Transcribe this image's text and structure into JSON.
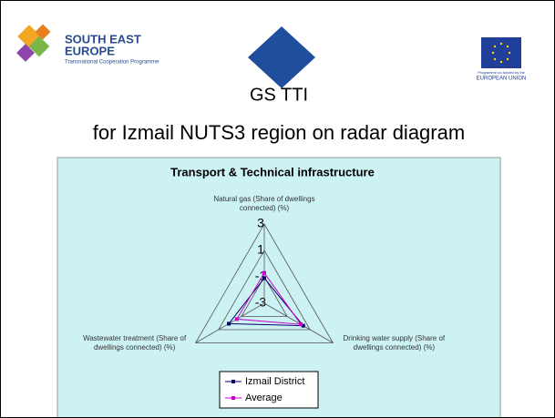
{
  "slide": {
    "logo_left": [
      "SOUTH EAST",
      "EUROPE",
      "Transnational Cooperation Programme"
    ],
    "logo_right": [
      "Programme co-funded by the",
      "EUROPEAN UNION"
    ],
    "title": "GS TTI",
    "subtitle": "for Izmail NUTS3 region on radar diagram"
  },
  "chart_data": {
    "type": "radar",
    "title": "Transport & Technical infrastructure",
    "categories": [
      "Natural gas (Share of dwellings connected) (%)",
      "Drinking water supply (Share of dwellings connected) (%)",
      "Wastewater treatment (Share of dwellings connected) (%)"
    ],
    "series": [
      {
        "name": "Izmail District",
        "color": "#000066",
        "values": [
          -1.1,
          0.4,
          0.1
        ]
      },
      {
        "name": "Average",
        "color": "#cc00cc",
        "values": [
          -0.7,
          0.2,
          -0.6
        ]
      }
    ],
    "rlim": [
      -3,
      3
    ],
    "rticks": [
      -3,
      -1,
      1,
      3
    ],
    "grid": true,
    "legend": "bottom"
  }
}
